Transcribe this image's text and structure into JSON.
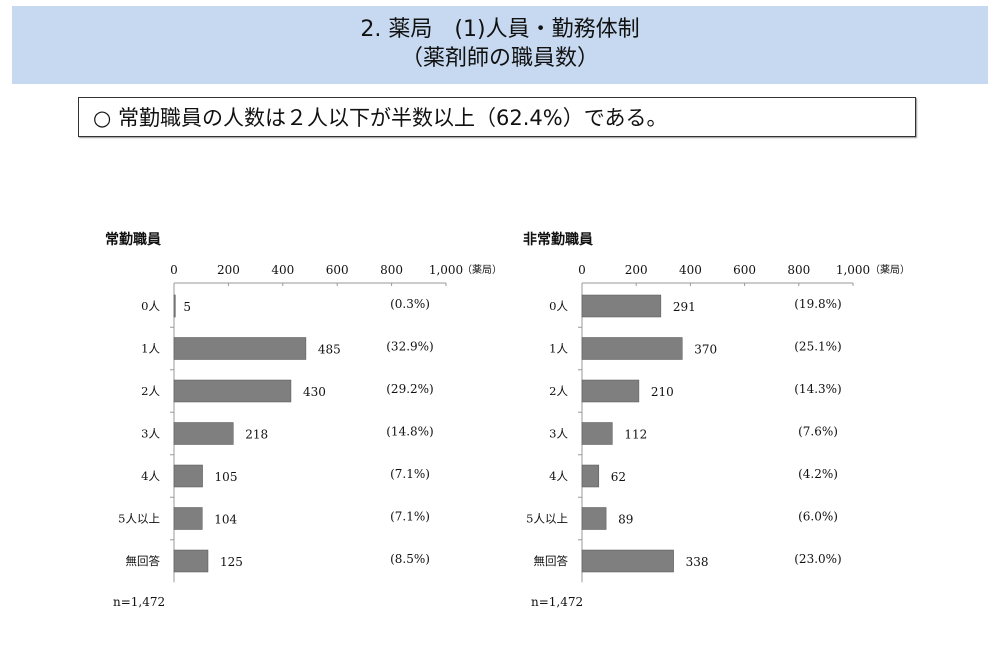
{
  "header": {
    "title_line1": "2. 薬局　(1)人員・勤務体制",
    "title_line2": "（薬剤師の職員数）"
  },
  "summary": "○ 常勤職員の人数は２人以下が半数以上（62.4%）である。",
  "chart_data": [
    {
      "type": "bar",
      "orientation": "horizontal",
      "title": "常勤職員",
      "unit": "（薬局）",
      "xlim": [
        0,
        1000
      ],
      "ticks": [
        "0",
        "200",
        "400",
        "600",
        "800",
        "1,000"
      ],
      "categories": [
        "0人",
        "1人",
        "2人",
        "3人",
        "4人",
        "5人以上",
        "無回答"
      ],
      "values": [
        5,
        485,
        430,
        218,
        105,
        104,
        125
      ],
      "percent_labels": [
        "(0.3%)",
        "(32.9%)",
        "(29.2%)",
        "(14.8%)",
        "(7.1%)",
        "(7.1%)",
        "(8.5%)"
      ],
      "n_label": "n=1,472",
      "bar_color": "#7f7f7f"
    },
    {
      "type": "bar",
      "orientation": "horizontal",
      "title": "非常勤職員",
      "unit": "（薬局）",
      "xlim": [
        0,
        1000
      ],
      "ticks": [
        "0",
        "200",
        "400",
        "600",
        "800",
        "1,000"
      ],
      "categories": [
        "0人",
        "1人",
        "2人",
        "3人",
        "4人",
        "5人以上",
        "無回答"
      ],
      "values": [
        291,
        370,
        210,
        112,
        62,
        89,
        338
      ],
      "percent_labels": [
        "(19.8%)",
        "(25.1%)",
        "(14.3%)",
        "(7.6%)",
        "(4.2%)",
        "(6.0%)",
        "(23.0%)"
      ],
      "n_label": "n=1,472",
      "bar_color": "#7f7f7f"
    }
  ]
}
